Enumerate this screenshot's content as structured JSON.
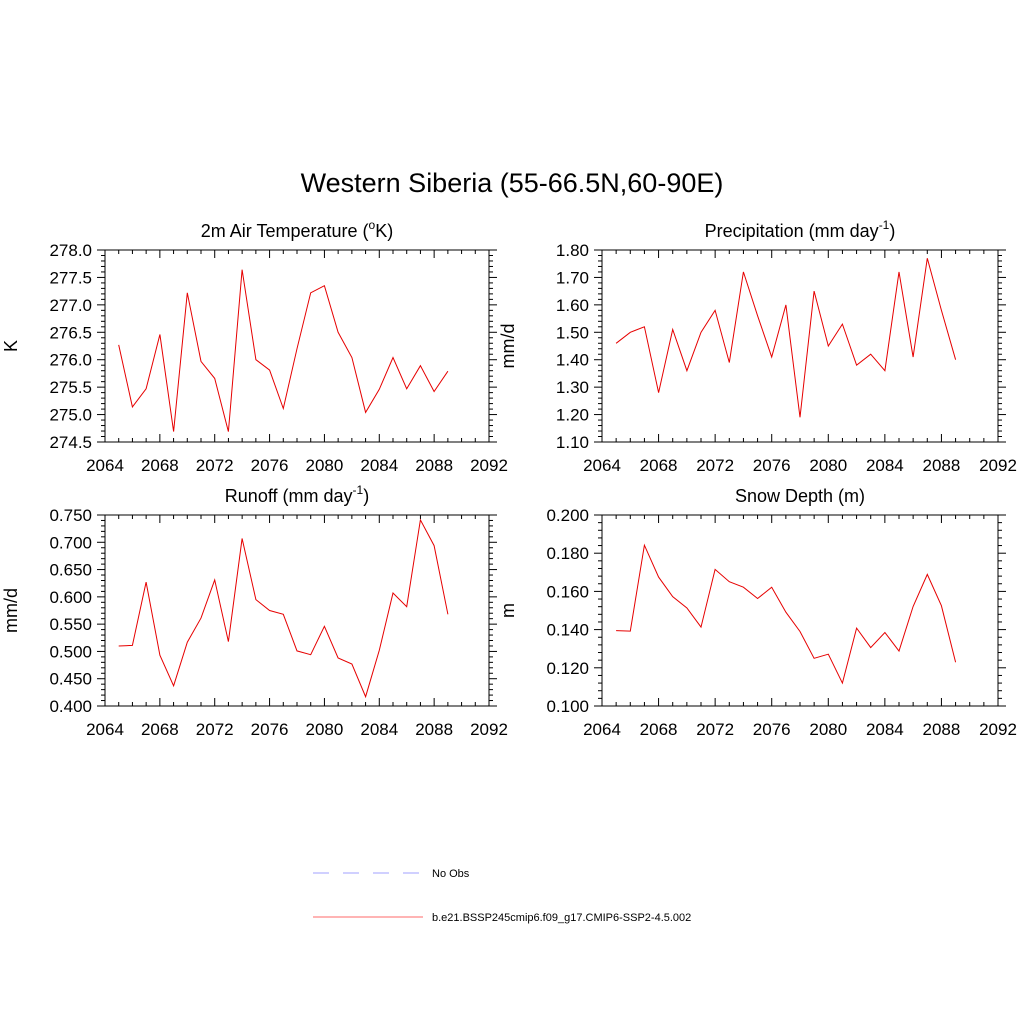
{
  "title": "Western Siberia (55-66.5N,60-90E)",
  "chart_data": [
    {
      "type": "line",
      "title_main": "2m Air Temperature (",
      "title_sup": "o",
      "title_tail": "K)",
      "ylabel": "K",
      "xlim": [
        2064,
        2092
      ],
      "ylim": [
        274.5,
        278.0
      ],
      "xticks": [
        2064,
        2068,
        2072,
        2076,
        2080,
        2084,
        2088,
        2092
      ],
      "xtick_labels": [
        "2064",
        "2068",
        "2072",
        "2076",
        "2080",
        "2084",
        "2088",
        "2092"
      ],
      "yticks": [
        274.5,
        275.0,
        275.5,
        276.0,
        276.5,
        277.0,
        277.5,
        278.0
      ],
      "ytick_labels": [
        "274.5",
        "275.0",
        "275.5",
        "276.0",
        "276.5",
        "277.0",
        "277.5",
        "278.0"
      ],
      "color": "#e60000",
      "x": [
        2065,
        2066,
        2067,
        2068,
        2069,
        2070,
        2071,
        2072,
        2073,
        2074,
        2075,
        2076,
        2077,
        2078,
        2079,
        2080,
        2081,
        2082,
        2083,
        2084,
        2085,
        2086,
        2087,
        2088,
        2089
      ],
      "values": [
        276.27,
        275.14,
        275.47,
        276.46,
        274.69,
        277.22,
        275.97,
        275.66,
        274.69,
        277.64,
        276.0,
        275.81,
        275.11,
        276.2,
        277.22,
        277.35,
        276.5,
        276.04,
        275.04,
        275.46,
        276.04,
        275.47,
        275.89,
        275.42,
        275.79
      ]
    },
    {
      "type": "line",
      "title_main": "Precipitation (mm day",
      "title_sup": "-1",
      "title_tail": ")",
      "ylabel": "mm/d",
      "xlim": [
        2064,
        2092
      ],
      "ylim": [
        1.1,
        1.8
      ],
      "xticks": [
        2064,
        2068,
        2072,
        2076,
        2080,
        2084,
        2088,
        2092
      ],
      "xtick_labels": [
        "2064",
        "2068",
        "2072",
        "2076",
        "2080",
        "2084",
        "2088",
        "2092"
      ],
      "yticks": [
        1.1,
        1.2,
        1.3,
        1.4,
        1.5,
        1.6,
        1.7,
        1.8
      ],
      "ytick_labels": [
        "1.10",
        "1.20",
        "1.30",
        "1.40",
        "1.50",
        "1.60",
        "1.70",
        "1.80"
      ],
      "color": "#e60000",
      "x": [
        2065,
        2066,
        2067,
        2068,
        2069,
        2070,
        2071,
        2072,
        2073,
        2074,
        2075,
        2076,
        2077,
        2078,
        2079,
        2080,
        2081,
        2082,
        2083,
        2084,
        2085,
        2086,
        2087,
        2088,
        2089
      ],
      "values": [
        1.46,
        1.5,
        1.52,
        1.28,
        1.51,
        1.36,
        1.5,
        1.58,
        1.39,
        1.72,
        1.56,
        1.41,
        1.6,
        1.19,
        1.65,
        1.45,
        1.53,
        1.38,
        1.42,
        1.36,
        1.72,
        1.41,
        1.77,
        1.58,
        1.4
      ]
    },
    {
      "type": "line",
      "title_main": "Runoff (mm day",
      "title_sup": "-1",
      "title_tail": ")",
      "ylabel": "mm/d",
      "xlim": [
        2064,
        2092
      ],
      "ylim": [
        0.4,
        0.75
      ],
      "xticks": [
        2064,
        2068,
        2072,
        2076,
        2080,
        2084,
        2088,
        2092
      ],
      "xtick_labels": [
        "2064",
        "2068",
        "2072",
        "2076",
        "2080",
        "2084",
        "2088",
        "2092"
      ],
      "yticks": [
        0.4,
        0.45,
        0.5,
        0.55,
        0.6,
        0.65,
        0.7,
        0.75
      ],
      "ytick_labels": [
        "0.400",
        "0.450",
        "0.500",
        "0.550",
        "0.600",
        "0.650",
        "0.700",
        "0.750"
      ],
      "color": "#e60000",
      "x": [
        2065,
        2066,
        2067,
        2068,
        2069,
        2070,
        2071,
        2072,
        2073,
        2074,
        2075,
        2076,
        2077,
        2078,
        2079,
        2080,
        2081,
        2082,
        2083,
        2084,
        2085,
        2086,
        2087,
        2088,
        2089
      ],
      "values": [
        0.51,
        0.511,
        0.627,
        0.493,
        0.437,
        0.517,
        0.561,
        0.631,
        0.518,
        0.707,
        0.595,
        0.575,
        0.568,
        0.501,
        0.494,
        0.546,
        0.488,
        0.477,
        0.417,
        0.502,
        0.607,
        0.582,
        0.741,
        0.694,
        0.568
      ]
    },
    {
      "type": "line",
      "title_main": "Snow Depth (m)",
      "title_sup": "",
      "title_tail": "",
      "ylabel": "m",
      "xlim": [
        2064,
        2092
      ],
      "ylim": [
        0.1,
        0.2
      ],
      "xticks": [
        2064,
        2068,
        2072,
        2076,
        2080,
        2084,
        2088,
        2092
      ],
      "xtick_labels": [
        "2064",
        "2068",
        "2072",
        "2076",
        "2080",
        "2084",
        "2088",
        "2092"
      ],
      "yticks": [
        0.1,
        0.12,
        0.14,
        0.16,
        0.18,
        0.2
      ],
      "ytick_labels": [
        "0.100",
        "0.120",
        "0.140",
        "0.160",
        "0.180",
        "0.200"
      ],
      "color": "#e60000",
      "x": [
        2065,
        2066,
        2067,
        2068,
        2069,
        2070,
        2071,
        2072,
        2073,
        2074,
        2075,
        2076,
        2077,
        2078,
        2079,
        2080,
        2081,
        2082,
        2083,
        2084,
        2085,
        2086,
        2087,
        2088,
        2089
      ],
      "values": [
        0.1395,
        0.1392,
        0.1842,
        0.1675,
        0.1572,
        0.1513,
        0.1413,
        0.1715,
        0.1651,
        0.1622,
        0.1563,
        0.1622,
        0.1491,
        0.139,
        0.125,
        0.1271,
        0.112,
        0.1408,
        0.1306,
        0.1385,
        0.1288,
        0.1521,
        0.1689,
        0.1525,
        0.1229
      ]
    }
  ],
  "legend": {
    "items": [
      {
        "label": "No Obs",
        "style": "dashed",
        "color": "#a0a0ff"
      },
      {
        "label": "b.e21.BSSP245cmip6.f09_g17.CMIP6-SSP2-4.5.002",
        "style": "solid",
        "color": "#ff6a6a"
      }
    ]
  }
}
